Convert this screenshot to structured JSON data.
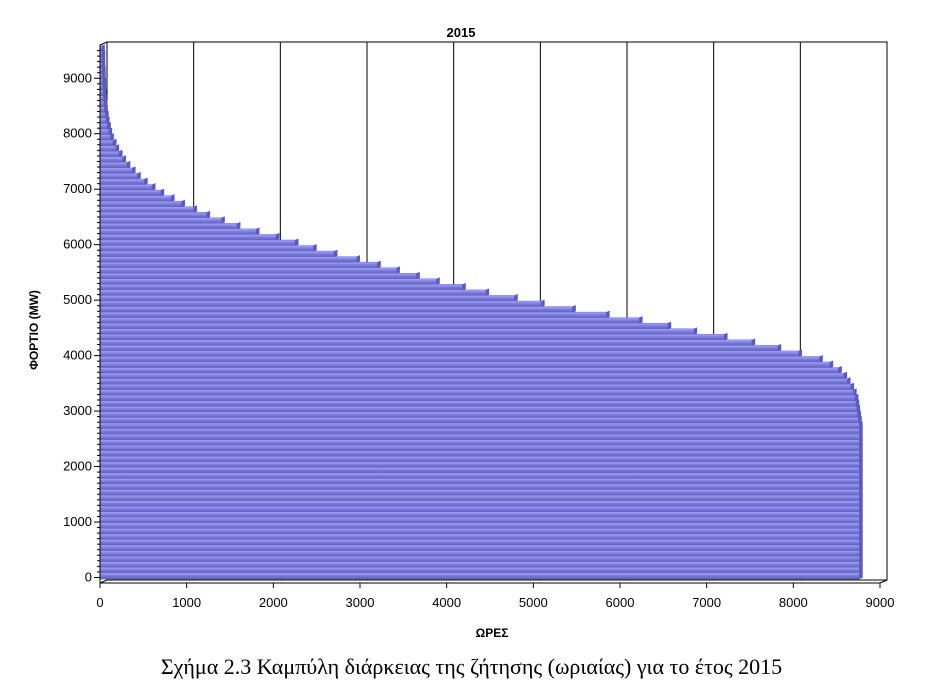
{
  "caption": "Σχήμα 2.3  Καμπύλη διάρκειας της ζήτησης (ωριαίας) για το έτος 2015",
  "colors": {
    "bar_fill": "#7b7bdd",
    "bar_edge": "#5a5ac2",
    "bar_highlight": "#a9a9ee"
  },
  "chart_data": {
    "type": "bar",
    "orientation": "horizontal",
    "title": "2015",
    "xlabel": "ΩΡΕΣ",
    "ylabel": "ΦΟΡΤΙΟ (MW)",
    "xlim": [
      0,
      9000
    ],
    "ylim": [
      -100,
      9600
    ],
    "xticks": [
      0,
      1000,
      2000,
      3000,
      4000,
      5000,
      6000,
      7000,
      8000,
      9000
    ],
    "yticks": [
      0,
      1000,
      2000,
      3000,
      4000,
      5000,
      6000,
      7000,
      8000,
      9000
    ],
    "grid": "vertical",
    "categories_mw": [
      0,
      100,
      200,
      300,
      400,
      500,
      600,
      700,
      800,
      900,
      1000,
      1100,
      1200,
      1300,
      1400,
      1500,
      1600,
      1700,
      1800,
      1900,
      2000,
      2100,
      2200,
      2300,
      2400,
      2500,
      2600,
      2700,
      2800,
      2900,
      3000,
      3100,
      3200,
      3300,
      3400,
      3500,
      3600,
      3700,
      3800,
      3900,
      4000,
      4100,
      4200,
      4300,
      4400,
      4500,
      4600,
      4700,
      4800,
      4900,
      5000,
      5100,
      5200,
      5300,
      5400,
      5500,
      5600,
      5700,
      5800,
      5900,
      6000,
      6100,
      6200,
      6300,
      6400,
      6500,
      6600,
      6700,
      6800,
      6900,
      7000,
      7100,
      7200,
      7300,
      7400,
      7500,
      7600,
      7700,
      7800,
      7900,
      8000,
      8100,
      8200,
      8300,
      8400,
      8500,
      8600,
      8700,
      8800,
      8900,
      9000,
      9100,
      9200,
      9300,
      9400,
      9500
    ],
    "values_hours": [
      8760,
      8760,
      8760,
      8760,
      8760,
      8760,
      8760,
      8760,
      8760,
      8760,
      8760,
      8760,
      8760,
      8760,
      8760,
      8760,
      8760,
      8760,
      8760,
      8760,
      8760,
      8760,
      8760,
      8760,
      8760,
      8760,
      8760,
      8760,
      8750,
      8740,
      8730,
      8720,
      8710,
      8690,
      8660,
      8620,
      8580,
      8520,
      8420,
      8300,
      8060,
      7820,
      7520,
      7200,
      6850,
      6550,
      6220,
      5840,
      5450,
      5090,
      4780,
      4450,
      4180,
      3880,
      3650,
      3420,
      3200,
      2960,
      2700,
      2460,
      2250,
      2030,
      1800,
      1580,
      1400,
      1230,
      1080,
      940,
      820,
      700,
      600,
      510,
      430,
      370,
      310,
      260,
      220,
      180,
      150,
      120,
      100,
      85,
      70,
      60,
      50,
      45,
      40,
      35,
      30,
      30,
      25,
      25,
      20,
      20,
      20,
      15
    ]
  }
}
